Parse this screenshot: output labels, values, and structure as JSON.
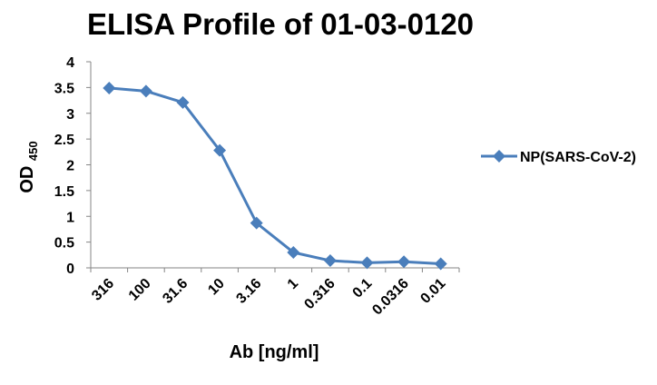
{
  "chart_data": {
    "type": "line",
    "title": "ELISA Profile of 01-03-0120",
    "xlabel": "Ab [ng/ml]",
    "ylabel": {
      "main": "OD",
      "subscript": "450"
    },
    "categories": [
      "316",
      "100",
      "31.6",
      "10",
      "3.16",
      "1",
      "0.316",
      "0.1",
      "0.0316",
      "0.01"
    ],
    "series": [
      {
        "name": "NP(SARS-CoV-2)",
        "values": [
          3.49,
          3.43,
          3.21,
          2.28,
          0.87,
          0.3,
          0.14,
          0.1,
          0.12,
          0.08
        ],
        "color": "#4a7ebb",
        "marker": "diamond"
      }
    ],
    "ylim": [
      0,
      4
    ],
    "yticks": [
      "0",
      "0.5",
      "1",
      "1.5",
      "2",
      "2.5",
      "3",
      "3.5",
      "4"
    ],
    "grid": false,
    "legend_position": "right"
  }
}
